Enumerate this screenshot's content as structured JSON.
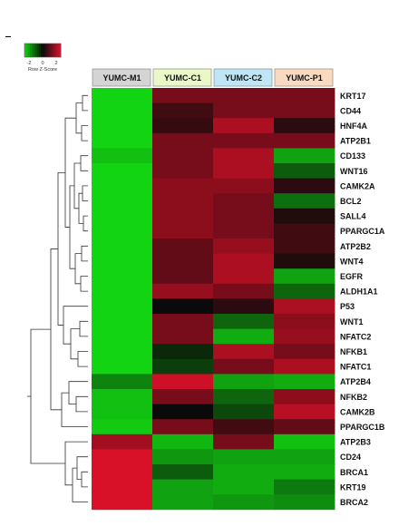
{
  "chart_data": {
    "type": "heatmap",
    "title": "",
    "color_key": {
      "ticks": [
        "-2",
        "0",
        "2"
      ],
      "label": "Row Z-Score",
      "low_color": "#12d412",
      "mid_color": "#0a0a0a",
      "high_color": "#e3102a",
      "range": [
        -2,
        2
      ]
    },
    "columns": [
      {
        "name": "YUMC-M1",
        "header_color": "#d4d4d4"
      },
      {
        "name": "YUMC-C1",
        "header_color": "#eaf7c6"
      },
      {
        "name": "YUMC-C2",
        "header_color": "#bfe6f6"
      },
      {
        "name": "YUMC-P1",
        "header_color": "#f9d9bf"
      }
    ],
    "rows": [
      "KRT17",
      "CD44",
      "HNF4A",
      "ATP2B1",
      "CD133",
      "WNT16",
      "CAMK2A",
      "BCL2",
      "SALL4",
      "PPARGC1A",
      "ATP2B2",
      "WNT4",
      "EGFR",
      "ALDH1A1",
      "P53",
      "WNT1",
      "NFATC2",
      "NFKB1",
      "NFATC1",
      "ATP2B4",
      "NFKB2",
      "CAMK2B",
      "PPARGC1B",
      "ATP2B3",
      "CD24",
      "BRCA1",
      "KRT19",
      "BRCA2"
    ],
    "values": [
      [
        -2.0,
        1.0,
        1.0,
        1.0
      ],
      [
        -2.0,
        0.5,
        1.0,
        1.0
      ],
      [
        -2.0,
        0.4,
        1.5,
        0.3
      ],
      [
        -2.0,
        1.0,
        1.0,
        1.0
      ],
      [
        -1.8,
        1.0,
        1.5,
        -1.5
      ],
      [
        -2.0,
        1.0,
        1.5,
        -0.8
      ],
      [
        -2.0,
        1.2,
        1.2,
        0.3
      ],
      [
        -2.0,
        1.2,
        1.0,
        -1.0
      ],
      [
        -2.0,
        1.2,
        1.0,
        0.2
      ],
      [
        -2.0,
        1.2,
        1.0,
        0.5
      ],
      [
        -2.0,
        0.8,
        1.3,
        0.5
      ],
      [
        -2.0,
        0.8,
        1.5,
        0.2
      ],
      [
        -2.0,
        0.8,
        1.5,
        -1.5
      ],
      [
        -2.0,
        1.3,
        1.0,
        -0.9
      ],
      [
        -2.0,
        0.0,
        0.3,
        1.5
      ],
      [
        -2.0,
        1.0,
        -0.9,
        1.2
      ],
      [
        -2.0,
        1.0,
        -1.6,
        1.3
      ],
      [
        -2.0,
        -0.3,
        1.5,
        1.0
      ],
      [
        -2.0,
        -0.5,
        1.0,
        1.5
      ],
      [
        -1.2,
        1.8,
        -1.5,
        -1.6
      ],
      [
        -1.8,
        1.0,
        -0.9,
        1.2
      ],
      [
        -1.8,
        0.0,
        -0.6,
        1.6
      ],
      [
        -1.9,
        1.0,
        0.5,
        0.8
      ],
      [
        1.4,
        -1.7,
        1.0,
        -1.8
      ],
      [
        1.9,
        -1.4,
        -1.5,
        -1.5
      ],
      [
        1.9,
        -0.8,
        -1.6,
        -1.6
      ],
      [
        1.9,
        -1.5,
        -1.6,
        -1.1
      ],
      [
        1.9,
        -1.5,
        -1.4,
        -1.3
      ]
    ]
  }
}
